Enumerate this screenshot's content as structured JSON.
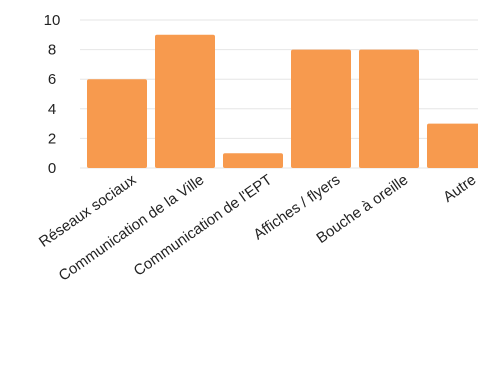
{
  "chart_data": {
    "type": "bar",
    "title": "",
    "xlabel": "",
    "ylabel": "",
    "categories": [
      "Réseaux sociaux",
      "Communication de la Ville",
      "Communication de l'EPT",
      "Affiches / flyers",
      "Bouche à oreille",
      "Autre"
    ],
    "values": [
      6,
      9,
      1,
      8,
      8,
      3
    ],
    "ylim": [
      0,
      10
    ],
    "yticks": [
      "0",
      "2",
      "4",
      "6",
      "8",
      "10"
    ],
    "grid": true,
    "legend": "none",
    "bar_color": "#F79A4E"
  }
}
